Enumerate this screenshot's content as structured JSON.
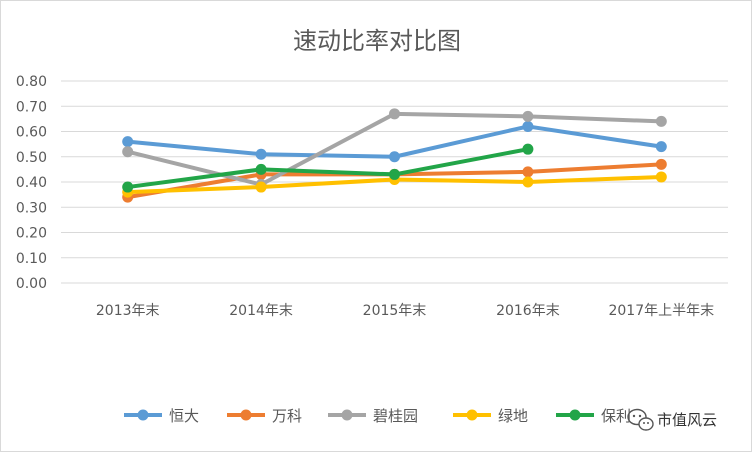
{
  "chart_data": {
    "type": "line",
    "title": "速动比率对比图",
    "categories": [
      "2013年末",
      "2014年末",
      "2015年末",
      "2016年末",
      "2017年上半年末"
    ],
    "ylim": [
      0,
      0.8
    ],
    "ytick_labels": [
      "0.00",
      "0.10",
      "0.20",
      "0.30",
      "0.40",
      "0.50",
      "0.60",
      "0.70",
      "0.80"
    ],
    "grid": true,
    "legend_position": "bottom",
    "series": [
      {
        "name": "恒大",
        "color": "#5b9bd5",
        "values": [
          0.56,
          0.51,
          0.5,
          0.62,
          0.54
        ]
      },
      {
        "name": "万科",
        "color": "#ed7d31",
        "values": [
          0.34,
          0.43,
          0.43,
          0.44,
          0.47
        ]
      },
      {
        "name": "碧桂园",
        "color": "#a5a5a5",
        "values": [
          0.52,
          0.39,
          0.67,
          0.66,
          0.64
        ]
      },
      {
        "name": "绿地",
        "color": "#ffc000",
        "values": [
          0.36,
          0.38,
          0.41,
          0.4,
          0.42
        ]
      },
      {
        "name": "保利",
        "color": "#22a548",
        "values": [
          0.38,
          0.45,
          0.43,
          0.53,
          null
        ]
      }
    ]
  },
  "watermark": {
    "text": "市值风云",
    "icon": "wechat-icon"
  }
}
